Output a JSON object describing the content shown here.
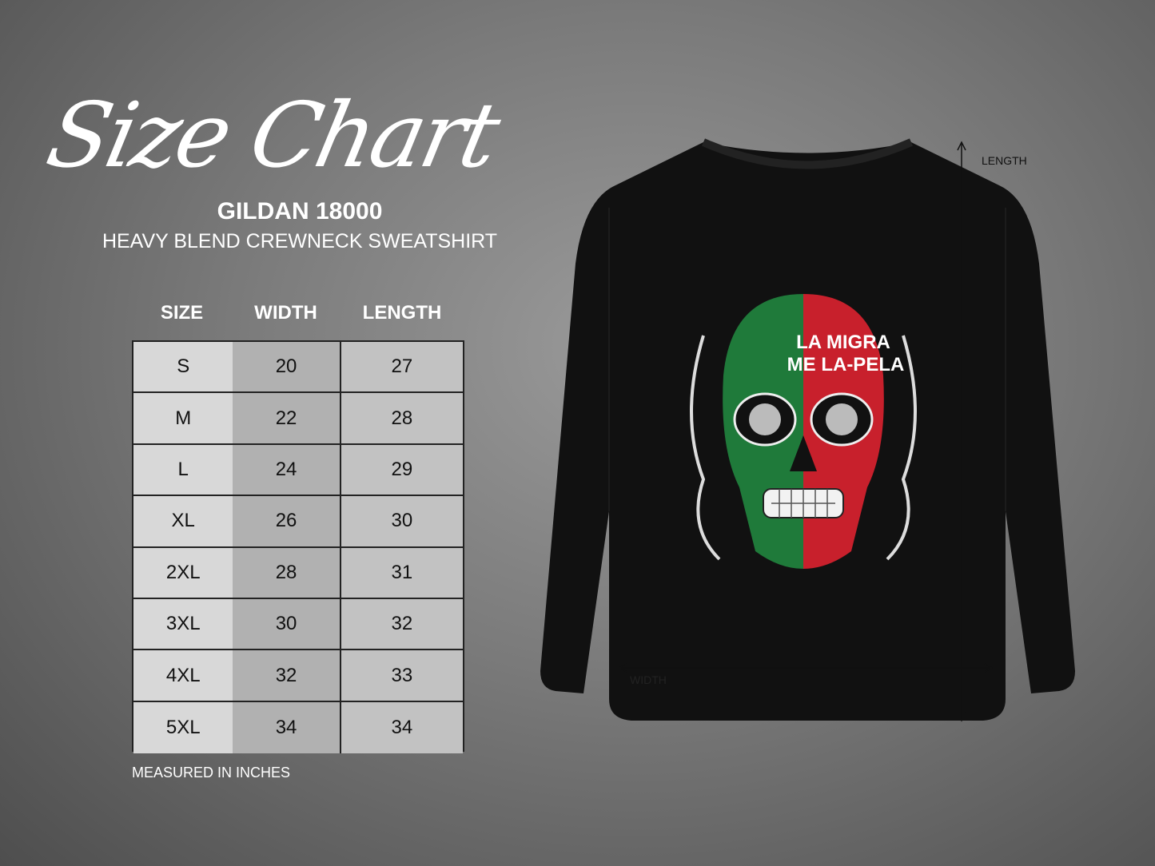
{
  "title": "Size Chart",
  "model": "GILDAN 18000",
  "subtitle": "HEAVY BLEND CREWNECK SWEATSHIRT",
  "table": {
    "headers": [
      "SIZE",
      "WIDTH",
      "LENGTH"
    ],
    "rows": [
      [
        "S",
        "20",
        "27"
      ],
      [
        "M",
        "22",
        "28"
      ],
      [
        "L",
        "24",
        "29"
      ],
      [
        "XL",
        "26",
        "30"
      ],
      [
        "2XL",
        "28",
        "31"
      ],
      [
        "3XL",
        "30",
        "32"
      ],
      [
        "4XL",
        "32",
        "33"
      ],
      [
        "5XL",
        "34",
        "34"
      ]
    ]
  },
  "note": "MEASURED IN INCHES",
  "garment": {
    "color": "#111111",
    "length_label": "LENGTH",
    "width_label": "WIDTH",
    "design_text_line1": "LA MIGRA",
    "design_text_line2": "ME LA-PELA",
    "design_colors": {
      "green": "#1f7a3a",
      "red": "#c8202c"
    }
  }
}
